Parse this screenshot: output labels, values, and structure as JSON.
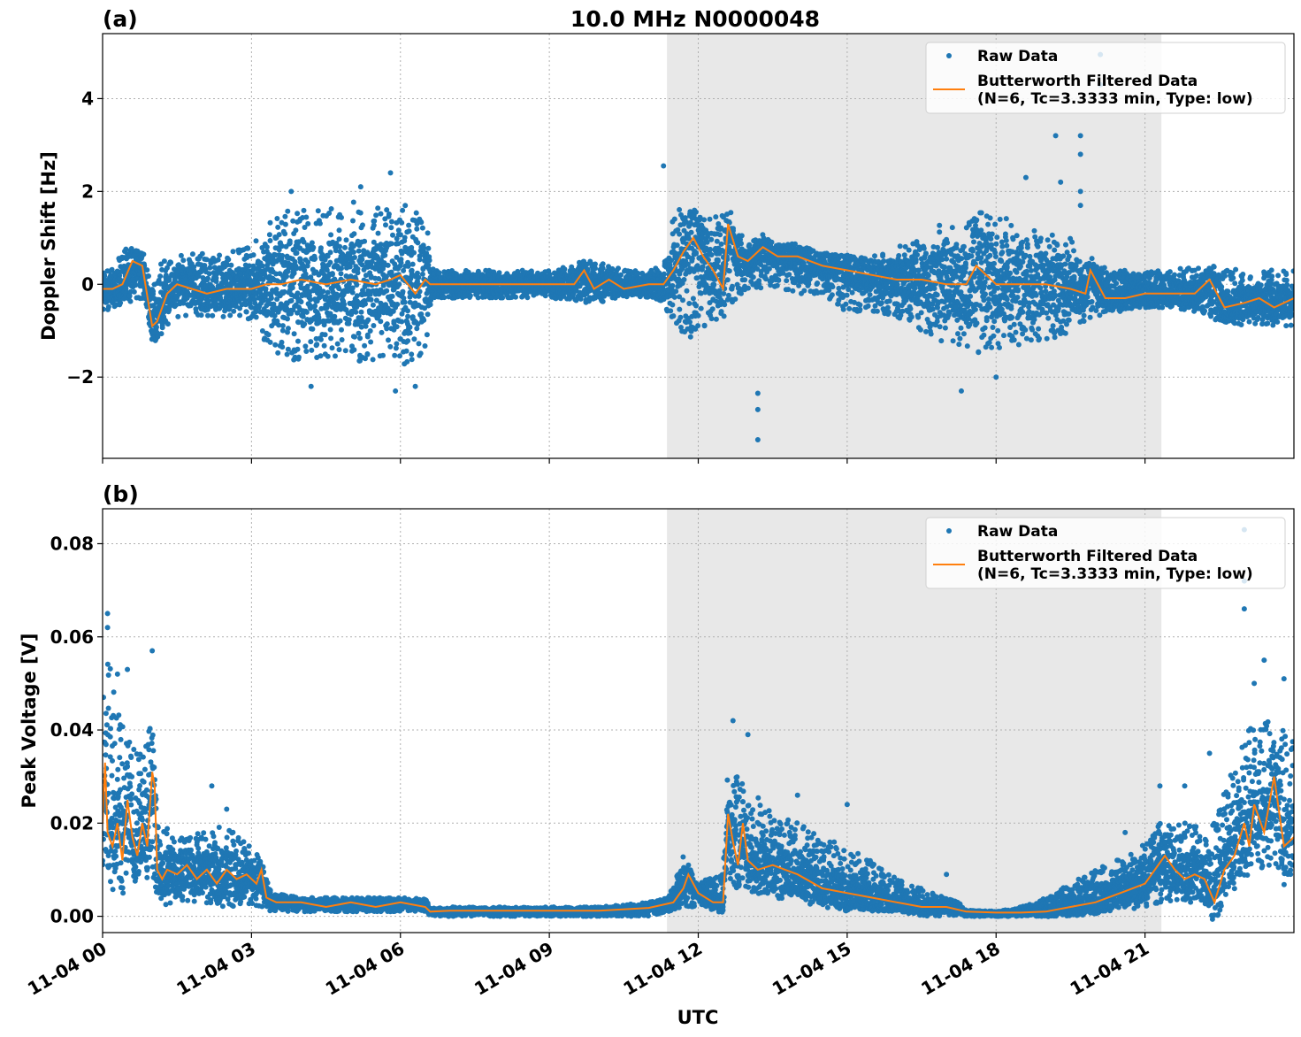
{
  "title": "10.0 MHz N0000048",
  "xlabel": "UTC",
  "colors": {
    "raw": "#1f77b4",
    "filtered": "#ff7f0e",
    "shade": "#e8e8e8"
  },
  "chart_data": [
    {
      "type": "scatter",
      "panel_label": "(a)",
      "ylabel": "Doppler Shift [Hz]",
      "xlim_hours": [
        0,
        24
      ],
      "ylim": [
        -3.75,
        5.4
      ],
      "yticks": [
        -2,
        0,
        2,
        4
      ],
      "ytick_labels": [
        "−2",
        "0",
        "2",
        "4"
      ],
      "xticks_hours": [
        0,
        3,
        6,
        9,
        12,
        15,
        18,
        21
      ],
      "xtick_labels": [
        "11-04 00",
        "11-04 03",
        "11-04 06",
        "11-04 09",
        "11-04 12",
        "11-04 15",
        "11-04 18",
        "11-04 21"
      ],
      "shaded_span_hours": [
        11.37,
        21.33
      ],
      "grid": true,
      "legend_position": "top-right",
      "legend": {
        "raw_label": "Raw Data",
        "filtered_label_1": "Butterworth Filtered Data",
        "filtered_label_2": "(N=6, Tc=3.3333 min, Type: low)"
      },
      "series": [
        {
          "name": "Raw Data",
          "kind": "points",
          "envelope": {
            "x": [
              0,
              0.2,
              0.5,
              0.8,
              1.0,
              1.2,
              1.5,
              2.0,
              2.5,
              3.0,
              3.3,
              3.6,
              4.0,
              4.5,
              5.0,
              5.5,
              6.0,
              6.3,
              6.5,
              6.7,
              7.0,
              8.0,
              9.0,
              9.7,
              10.0,
              10.5,
              11.0,
              11.3,
              11.5,
              11.8,
              12.0,
              12.3,
              12.6,
              12.8,
              13.0,
              13.5,
              14.0,
              14.5,
              15.0,
              15.5,
              16.0,
              16.5,
              17.0,
              17.5,
              18.0,
              18.5,
              19.0,
              19.5,
              19.8,
              20.0,
              20.5,
              21.0,
              21.5,
              22.0,
              22.5,
              23.0,
              23.5,
              24.0
            ],
            "low": [
              -0.6,
              -0.5,
              -0.4,
              -0.3,
              -1.3,
              -1.1,
              -0.7,
              -0.7,
              -0.7,
              -0.8,
              -1.3,
              -1.7,
              -1.6,
              -1.6,
              -1.7,
              -1.7,
              -1.8,
              -1.6,
              -1.5,
              -0.3,
              -0.3,
              -0.3,
              -0.3,
              -0.4,
              -0.4,
              -0.3,
              -0.3,
              -0.4,
              -0.9,
              -1.2,
              -1.0,
              -0.9,
              -0.7,
              -0.3,
              -0.1,
              -0.1,
              -0.2,
              -0.2,
              -0.6,
              -0.6,
              -0.7,
              -1.0,
              -1.3,
              -1.5,
              -1.4,
              -1.3,
              -1.2,
              -1.1,
              -0.8,
              -0.7,
              -0.6,
              -0.5,
              -0.5,
              -0.6,
              -0.8,
              -0.9,
              -0.9,
              -0.9
            ],
            "high": [
              0.3,
              0.4,
              0.8,
              0.8,
              0.0,
              0.5,
              0.6,
              0.7,
              0.7,
              0.8,
              1.3,
              1.6,
              1.6,
              1.6,
              1.8,
              1.7,
              1.8,
              1.6,
              1.4,
              0.3,
              0.3,
              0.3,
              0.3,
              0.5,
              0.5,
              0.3,
              0.3,
              0.4,
              1.7,
              1.6,
              1.6,
              1.5,
              1.5,
              1.1,
              1.0,
              0.9,
              0.8,
              0.7,
              0.6,
              0.6,
              0.8,
              1.0,
              1.4,
              1.6,
              1.5,
              1.3,
              1.2,
              1.0,
              0.5,
              0.4,
              0.3,
              0.3,
              0.3,
              0.4,
              0.4,
              0.3,
              0.3,
              0.4
            ]
          },
          "outliers": [
            [
              3.8,
              2.0
            ],
            [
              5.2,
              2.1
            ],
            [
              5.8,
              2.4
            ],
            [
              4.2,
              -2.2
            ],
            [
              5.9,
              -2.3
            ],
            [
              6.3,
              -2.2
            ],
            [
              11.3,
              2.55
            ],
            [
              13.2,
              -2.7
            ],
            [
              13.2,
              -3.35
            ],
            [
              13.2,
              -2.35
            ],
            [
              17.3,
              -2.3
            ],
            [
              18.0,
              -2.0
            ],
            [
              18.6,
              2.3
            ],
            [
              19.2,
              3.2
            ],
            [
              19.3,
              2.2
            ],
            [
              19.7,
              3.2
            ],
            [
              19.7,
              2.8
            ],
            [
              19.7,
              2.0
            ],
            [
              19.7,
              1.7
            ],
            [
              20.1,
              4.95
            ],
            [
              20.1,
              4.3
            ]
          ]
        },
        {
          "name": "Butterworth Filtered Data",
          "kind": "line",
          "x": [
            0,
            0.2,
            0.4,
            0.6,
            0.8,
            1.0,
            1.1,
            1.3,
            1.5,
            1.8,
            2.1,
            2.5,
            3.0,
            3.3,
            3.6,
            4.0,
            4.5,
            5.0,
            5.5,
            5.8,
            6.0,
            6.3,
            6.5,
            6.6,
            7.0,
            8.0,
            9.0,
            9.5,
            9.7,
            9.9,
            10.2,
            10.5,
            11.0,
            11.3,
            11.5,
            11.7,
            11.9,
            12.1,
            12.3,
            12.5,
            12.6,
            12.8,
            13.0,
            13.3,
            13.6,
            14.0,
            14.5,
            15.0,
            15.5,
            16.0,
            16.5,
            17.0,
            17.4,
            17.6,
            18.0,
            18.5,
            19.0,
            19.5,
            19.8,
            19.9,
            20.2,
            20.6,
            21.0,
            21.5,
            22.0,
            22.3,
            22.6,
            23.0,
            23.3,
            23.6,
            24.0
          ],
          "y": [
            -0.1,
            -0.1,
            0.0,
            0.5,
            0.4,
            -0.9,
            -0.8,
            -0.2,
            0.0,
            -0.1,
            -0.2,
            -0.1,
            -0.1,
            0.0,
            0.0,
            0.1,
            0.0,
            0.1,
            0.0,
            0.1,
            0.2,
            -0.2,
            0.1,
            0.0,
            0.0,
            0.0,
            0.0,
            0.0,
            0.3,
            -0.1,
            0.1,
            -0.1,
            0.0,
            0.0,
            0.3,
            0.7,
            1.0,
            0.6,
            0.3,
            -0.1,
            1.3,
            0.6,
            0.5,
            0.8,
            0.6,
            0.6,
            0.4,
            0.3,
            0.2,
            0.1,
            0.1,
            0.0,
            0.0,
            0.4,
            0.0,
            0.0,
            0.0,
            -0.1,
            -0.2,
            0.3,
            -0.3,
            -0.3,
            -0.2,
            -0.2,
            -0.2,
            0.1,
            -0.5,
            -0.4,
            -0.3,
            -0.5,
            -0.3
          ]
        }
      ]
    },
    {
      "type": "scatter",
      "panel_label": "(b)",
      "ylabel": "Peak Voltage [V]",
      "xlim_hours": [
        0,
        24
      ],
      "ylim": [
        -0.0035,
        0.0875
      ],
      "yticks": [
        0.0,
        0.02,
        0.04,
        0.06,
        0.08
      ],
      "ytick_labels": [
        "0.00",
        "0.02",
        "0.04",
        "0.06",
        "0.08"
      ],
      "xticks_hours": [
        0,
        3,
        6,
        9,
        12,
        15,
        18,
        21
      ],
      "xtick_labels": [
        "11-04 00",
        "11-04 03",
        "11-04 06",
        "11-04 09",
        "11-04 12",
        "11-04 15",
        "11-04 18",
        "11-04 21"
      ],
      "shaded_span_hours": [
        11.37,
        21.33
      ],
      "grid": true,
      "legend_position": "top-right",
      "legend": {
        "raw_label": "Raw Data",
        "filtered_label_1": "Butterworth Filtered Data",
        "filtered_label_2": "(N=6, Tc=3.3333 min, Type: low)"
      },
      "series": [
        {
          "name": "Raw Data",
          "kind": "points",
          "envelope": {
            "x": [
              0,
              0.1,
              0.3,
              0.5,
              0.7,
              0.9,
              1.0,
              1.1,
              1.3,
              1.6,
              2.0,
              2.5,
              3.0,
              3.2,
              3.4,
              4.0,
              5.0,
              6.0,
              6.5,
              6.6,
              7.0,
              8.0,
              9.0,
              10.0,
              11.0,
              11.4,
              11.7,
              11.9,
              12.2,
              12.5,
              12.6,
              12.8,
              13.0,
              13.5,
              14.0,
              14.5,
              15.0,
              15.5,
              16.0,
              16.5,
              17.0,
              17.3,
              17.4,
              18.0,
              18.5,
              19.0,
              19.5,
              20.0,
              20.5,
              21.0,
              21.3,
              21.6,
              22.0,
              22.3,
              22.6,
              23.0,
              23.3,
              23.6,
              24.0
            ],
            "low": [
              0.006,
              0.01,
              0.012,
              0.008,
              0.01,
              0.012,
              0.01,
              0.003,
              0.002,
              0.003,
              0.003,
              0.002,
              0.002,
              0.002,
              0.001,
              0.001,
              0.001,
              0.001,
              0.001,
              0.0,
              0.0,
              0.0,
              0.0,
              0.0,
              0.0,
              0.001,
              0.002,
              0.002,
              0.002,
              0.002,
              0.007,
              0.006,
              0.005,
              0.004,
              0.003,
              0.002,
              0.001,
              0.001,
              0.001,
              0.0,
              0.0,
              0.0,
              0.0,
              0.0,
              0.0,
              0.0,
              0.0,
              0.001,
              0.001,
              0.002,
              0.003,
              0.003,
              0.002,
              0.002,
              0.006,
              0.008,
              0.01,
              0.01,
              0.01
            ],
            "high": [
              0.045,
              0.058,
              0.045,
              0.038,
              0.035,
              0.038,
              0.046,
              0.02,
              0.019,
              0.017,
              0.018,
              0.02,
              0.015,
              0.012,
              0.005,
              0.004,
              0.004,
              0.004,
              0.004,
              0.002,
              0.002,
              0.002,
              0.002,
              0.002,
              0.003,
              0.004,
              0.013,
              0.007,
              0.008,
              0.01,
              0.033,
              0.03,
              0.028,
              0.022,
              0.02,
              0.017,
              0.015,
              0.012,
              0.008,
              0.006,
              0.004,
              0.003,
              0.001,
              0.001,
              0.002,
              0.004,
              0.007,
              0.01,
              0.013,
              0.016,
              0.02,
              0.02,
              0.02,
              0.018,
              0.028,
              0.038,
              0.045,
              0.04,
              0.04
            ]
          },
          "outliers": [
            [
              0.1,
              0.065
            ],
            [
              0.1,
              0.062
            ],
            [
              0.3,
              0.052
            ],
            [
              0.5,
              0.053
            ],
            [
              1.0,
              0.057
            ],
            [
              2.2,
              0.028
            ],
            [
              2.5,
              0.023
            ],
            [
              12.7,
              0.042
            ],
            [
              13.0,
              0.039
            ],
            [
              14.0,
              0.026
            ],
            [
              15.0,
              0.024
            ],
            [
              17.0,
              0.009
            ],
            [
              20.6,
              0.018
            ],
            [
              21.3,
              0.028
            ],
            [
              21.8,
              0.028
            ],
            [
              22.3,
              0.035
            ],
            [
              23.0,
              0.083
            ],
            [
              23.0,
              0.072
            ],
            [
              23.0,
              0.066
            ],
            [
              23.2,
              0.05
            ],
            [
              23.4,
              0.055
            ],
            [
              23.8,
              0.051
            ]
          ]
        },
        {
          "name": "Butterworth Filtered Data",
          "kind": "line",
          "x": [
            0,
            0.05,
            0.1,
            0.2,
            0.3,
            0.4,
            0.5,
            0.6,
            0.7,
            0.8,
            0.9,
            1.0,
            1.05,
            1.1,
            1.2,
            1.3,
            1.5,
            1.7,
            1.9,
            2.1,
            2.3,
            2.5,
            2.7,
            2.9,
            3.1,
            3.2,
            3.3,
            3.5,
            4.0,
            4.5,
            5.0,
            5.5,
            6.0,
            6.5,
            6.6,
            7.0,
            8.0,
            9.0,
            10.0,
            11.0,
            11.3,
            11.5,
            11.7,
            11.8,
            12.0,
            12.3,
            12.5,
            12.6,
            12.7,
            12.8,
            12.9,
            13.0,
            13.2,
            13.5,
            14.0,
            14.5,
            15.0,
            15.5,
            16.0,
            16.5,
            17.0,
            17.4,
            18.0,
            18.5,
            19.0,
            19.5,
            20.0,
            20.5,
            21.0,
            21.2,
            21.4,
            21.6,
            21.8,
            22.0,
            22.2,
            22.4,
            22.6,
            22.8,
            23.0,
            23.1,
            23.2,
            23.4,
            23.6,
            23.8,
            24.0
          ],
          "y": [
            0.02,
            0.033,
            0.018,
            0.015,
            0.02,
            0.012,
            0.025,
            0.017,
            0.013,
            0.02,
            0.015,
            0.031,
            0.028,
            0.01,
            0.008,
            0.01,
            0.009,
            0.011,
            0.008,
            0.01,
            0.007,
            0.01,
            0.008,
            0.009,
            0.007,
            0.01,
            0.004,
            0.003,
            0.003,
            0.002,
            0.003,
            0.002,
            0.003,
            0.002,
            0.001,
            0.0012,
            0.0012,
            0.0012,
            0.0012,
            0.0018,
            0.0025,
            0.003,
            0.006,
            0.009,
            0.005,
            0.003,
            0.003,
            0.022,
            0.016,
            0.011,
            0.02,
            0.012,
            0.01,
            0.011,
            0.009,
            0.006,
            0.005,
            0.004,
            0.003,
            0.002,
            0.002,
            0.001,
            0.0008,
            0.0008,
            0.001,
            0.002,
            0.003,
            0.005,
            0.007,
            0.01,
            0.013,
            0.01,
            0.008,
            0.009,
            0.008,
            0.003,
            0.01,
            0.013,
            0.02,
            0.015,
            0.024,
            0.018,
            0.03,
            0.015,
            0.017
          ]
        }
      ]
    }
  ]
}
